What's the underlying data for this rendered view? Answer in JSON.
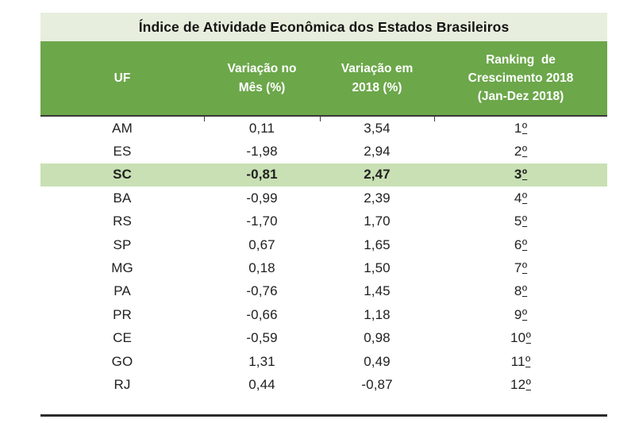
{
  "title": "Índice de Atividade Econômica dos Estados Brasileiros",
  "colors": {
    "title_bg": "#E7EEDD",
    "header_bg": "#6CA74A",
    "header_text": "#FFFFFF",
    "highlight_bg": "#C8E0B3",
    "body_text": "#212121",
    "rule": "#3A3A3A"
  },
  "table": {
    "columns": [
      {
        "label": "UF"
      },
      {
        "label": "Variação no\nMês (%)"
      },
      {
        "label": "Variação em\n2018 (%)"
      },
      {
        "label": "Ranking  de\nCrescimento 2018\n(Jan-Dez 2018)"
      }
    ],
    "rows": [
      {
        "uf": "AM",
        "var_mes": "0,11",
        "var_2018": "3,54",
        "rank_num": "1",
        "rank_ord": "º",
        "highlighted": false
      },
      {
        "uf": "ES",
        "var_mes": "-1,98",
        "var_2018": "2,94",
        "rank_num": "2",
        "rank_ord": "º",
        "highlighted": false
      },
      {
        "uf": "SC",
        "var_mes": "-0,81",
        "var_2018": "2,47",
        "rank_num": "3",
        "rank_ord": "º",
        "highlighted": true
      },
      {
        "uf": "BA",
        "var_mes": "-0,99",
        "var_2018": "2,39",
        "rank_num": "4",
        "rank_ord": "º",
        "highlighted": false
      },
      {
        "uf": "RS",
        "var_mes": "-1,70",
        "var_2018": "1,70",
        "rank_num": "5",
        "rank_ord": "º",
        "highlighted": false
      },
      {
        "uf": "SP",
        "var_mes": "0,67",
        "var_2018": "1,65",
        "rank_num": "6",
        "rank_ord": "º",
        "highlighted": false
      },
      {
        "uf": "MG",
        "var_mes": "0,18",
        "var_2018": "1,50",
        "rank_num": "7",
        "rank_ord": "º",
        "highlighted": false
      },
      {
        "uf": "PA",
        "var_mes": "-0,76",
        "var_2018": "1,45",
        "rank_num": "8",
        "rank_ord": "º",
        "highlighted": false
      },
      {
        "uf": "PR",
        "var_mes": "-0,66",
        "var_2018": "1,18",
        "rank_num": "9",
        "rank_ord": "º",
        "highlighted": false
      },
      {
        "uf": "CE",
        "var_mes": "-0,59",
        "var_2018": "0,98",
        "rank_num": "10",
        "rank_ord": "º",
        "highlighted": false
      },
      {
        "uf": "GO",
        "var_mes": "1,31",
        "var_2018": "0,49",
        "rank_num": "11",
        "rank_ord": "º",
        "highlighted": false
      },
      {
        "uf": "RJ",
        "var_mes": "0,44",
        "var_2018": "-0,87",
        "rank_num": "12",
        "rank_ord": "º",
        "highlighted": false
      }
    ]
  },
  "chart_data": {
    "type": "table",
    "title": "Índice de Atividade Econômica dos Estados Brasileiros",
    "columns": [
      "UF",
      "Variação no Mês (%)",
      "Variação em 2018 (%)",
      "Ranking de Crescimento 2018 (Jan-Dez 2018)"
    ],
    "rows": [
      [
        "AM",
        0.11,
        3.54,
        "1º"
      ],
      [
        "ES",
        -1.98,
        2.94,
        "2º"
      ],
      [
        "SC",
        -0.81,
        2.47,
        "3º"
      ],
      [
        "BA",
        -0.99,
        2.39,
        "4º"
      ],
      [
        "RS",
        -1.7,
        1.7,
        "5º"
      ],
      [
        "SP",
        0.67,
        1.65,
        "6º"
      ],
      [
        "MG",
        0.18,
        1.5,
        "7º"
      ],
      [
        "PA",
        -0.76,
        1.45,
        "8º"
      ],
      [
        "PR",
        -0.66,
        1.18,
        "9º"
      ],
      [
        "CE",
        -0.59,
        0.98,
        "10º"
      ],
      [
        "GO",
        1.31,
        0.49,
        "11º"
      ],
      [
        "RJ",
        0.44,
        -0.87,
        "12º"
      ]
    ],
    "highlighted_row": "SC",
    "layout": {
      "header_bg": "#6CA74A",
      "title_bg": "#E7EEDD",
      "highlight_bg": "#C8E0B3",
      "grid": "off"
    }
  }
}
